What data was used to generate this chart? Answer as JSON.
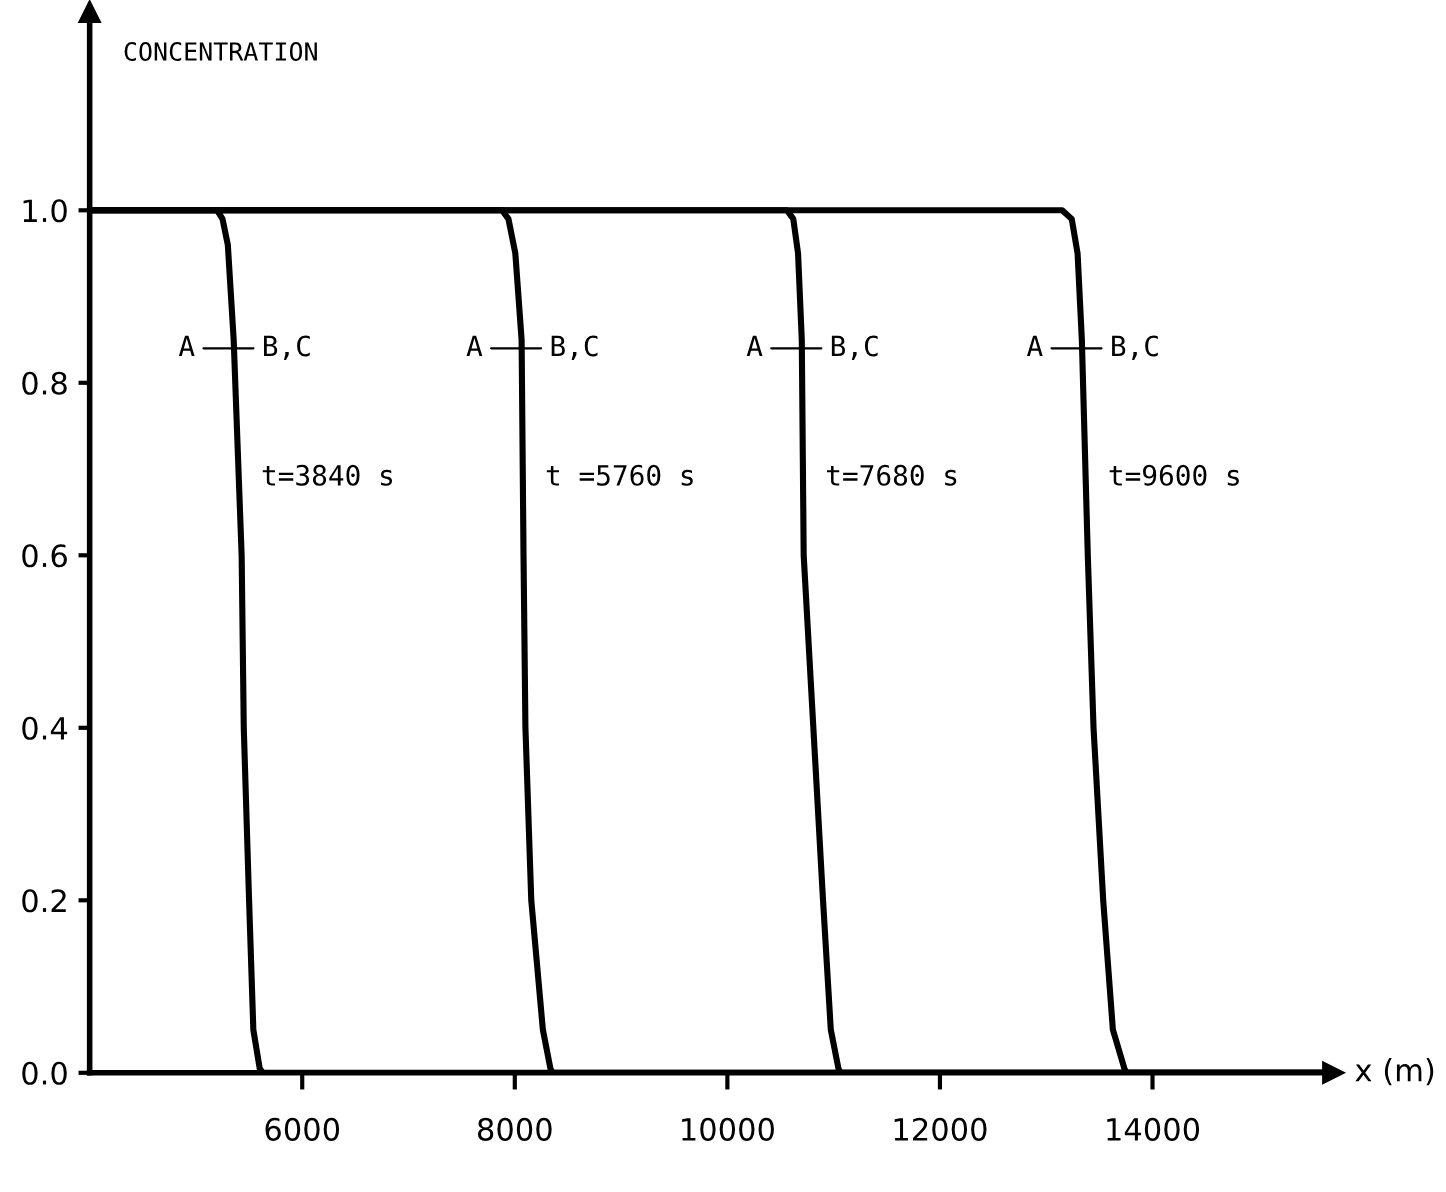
{
  "chart_data": {
    "type": "line",
    "xlabel": "x (m)",
    "ylabel": "CONCENTRATION",
    "xlim": [
      4000,
      15700
    ],
    "ylim": [
      0,
      1.23
    ],
    "xticks": [
      6000,
      8000,
      10000,
      12000,
      14000
    ],
    "yticks": [
      {
        "value": 0,
        "label": "0.0"
      },
      {
        "value": 0.2,
        "label": "0.2"
      },
      {
        "value": 0.4,
        "label": "0.4"
      },
      {
        "value": 0.6,
        "label": "0.6"
      },
      {
        "value": 0.8,
        "label": "0.8"
      },
      {
        "value": 1,
        "label": "1.0"
      }
    ],
    "grid": false,
    "marker": "none",
    "line_style": "solid",
    "series": [
      {
        "name": "t=3840 s",
        "color": "#000000",
        "x": [
          4000,
          5200,
          5250,
          5300,
          5355,
          5430,
          5450,
          5500,
          5540,
          5600,
          5630,
          15700
        ],
        "values": [
          1,
          1,
          0.99,
          0.96,
          0.85,
          0.6,
          0.4,
          0.2,
          0.05,
          0.005,
          0,
          0
        ]
      },
      {
        "name": "t =5760 s",
        "color": "#000000",
        "x": [
          4000,
          7880,
          7940,
          8005,
          8064,
          8082,
          8100,
          8155,
          8264,
          8335,
          8355,
          15700
        ],
        "values": [
          1,
          1,
          0.99,
          0.95,
          0.85,
          0.6,
          0.4,
          0.2,
          0.05,
          0.005,
          0,
          0
        ]
      },
      {
        "name": "t=7680 s",
        "color": "#000000",
        "x": [
          4000,
          10560,
          10620,
          10665,
          10700,
          10718,
          10809,
          10900,
          10973,
          11045,
          11064,
          15700
        ],
        "values": [
          1,
          1,
          0.99,
          0.95,
          0.85,
          0.6,
          0.4,
          0.2,
          0.05,
          0.005,
          0,
          0
        ]
      },
      {
        "name": "t=9600 s",
        "color": "#000000",
        "x": [
          4000,
          13150,
          13240,
          13295,
          13335,
          13391,
          13445,
          13536,
          13627,
          13735,
          13755,
          15700
        ],
        "values": [
          1,
          1,
          0.99,
          0.95,
          0.85,
          0.6,
          0.4,
          0.2,
          0.05,
          0.005,
          0,
          0
        ]
      }
    ],
    "annotations": [
      "A",
      "B,C",
      "A",
      "B,C",
      "A",
      "B,C",
      "A",
      "B,C"
    ]
  }
}
